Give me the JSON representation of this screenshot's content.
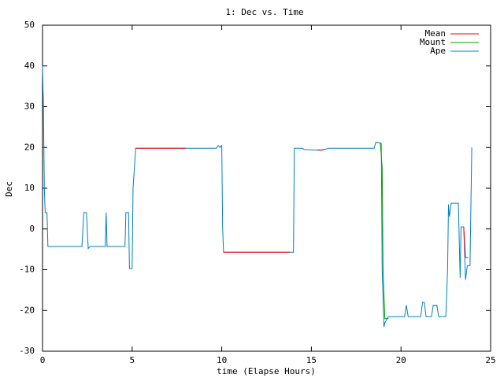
{
  "chart_data": {
    "type": "line",
    "title": "1: Dec vs. Time",
    "x_label": "time (Elapse Hours)",
    "y_label": "Dec",
    "xlim": [
      0,
      25
    ],
    "xticks": [
      0,
      5,
      10,
      15,
      20,
      25
    ],
    "ylim": [
      -30,
      50
    ],
    "yticks": [
      -30,
      -20,
      -10,
      0,
      10,
      20,
      30,
      40,
      50
    ],
    "grid": false,
    "legend": "top-right",
    "series": [
      {
        "name": "Mean",
        "color": "#ff0000",
        "x": [
          5.2,
          8.0,
          8.05,
          10.1,
          13.8,
          13.85,
          15.3,
          15.7,
          15.75,
          23.5,
          23.6,
          23.75
        ],
        "values": [
          19.8,
          19.8,
          null,
          -5.7,
          -5.7,
          null,
          19.4,
          19.4,
          null,
          0.5,
          -7,
          -7
        ]
      },
      {
        "name": "Mount",
        "color": "#00a000",
        "x": [
          18.85,
          18.95,
          19.0,
          19.1,
          19.3
        ],
        "values": [
          21,
          15,
          -10,
          -22,
          -22
        ]
      },
      {
        "name": "Ape",
        "color": "#0080c0",
        "x": [
          0,
          0.05,
          0.1,
          0.15,
          0.25,
          0.3,
          2.2,
          2.3,
          2.45,
          2.55,
          2.65,
          3.5,
          3.55,
          3.6,
          4.6,
          4.65,
          4.8,
          4.85,
          5.0,
          5.05,
          5.2,
          8,
          9.7,
          9.8,
          9.9,
          10.0,
          10.05,
          10.1,
          13.8,
          14.0,
          14.05,
          14.5,
          14.6,
          15.5,
          16,
          18.5,
          18.6,
          18.9,
          18.95,
          19.05,
          19.1,
          19.3,
          20.2,
          20.3,
          20.4,
          21.1,
          21.2,
          21.3,
          21.4,
          21.7,
          21.8,
          22.0,
          22.1,
          22.5,
          22.6,
          22.65,
          22.7,
          22.8,
          23.2,
          23.3,
          23.35,
          23.5,
          23.6,
          23.7,
          23.85,
          23.95
        ],
        "values": [
          40,
          30,
          10,
          4,
          4,
          -4.3,
          -4.3,
          4,
          4,
          -4.8,
          -4.3,
          -4.3,
          4,
          -4.3,
          -4.3,
          4,
          4,
          -9.7,
          -9.7,
          10,
          19.8,
          19.8,
          19.8,
          20.5,
          20,
          20.5,
          0,
          -5.7,
          -5.7,
          -5.7,
          19.8,
          19.8,
          19.5,
          19.3,
          19.8,
          19.8,
          21.3,
          21,
          -10,
          -24,
          -23,
          -21.5,
          -21.5,
          -18.7,
          -21.5,
          -21.5,
          -18,
          -18,
          -21.5,
          -21.5,
          -18.7,
          -18.7,
          -21.5,
          -21.5,
          -10,
          6,
          3,
          6.3,
          6.3,
          -12,
          0.5,
          0.5,
          -12.5,
          -9,
          -9,
          20
        ]
      }
    ]
  }
}
